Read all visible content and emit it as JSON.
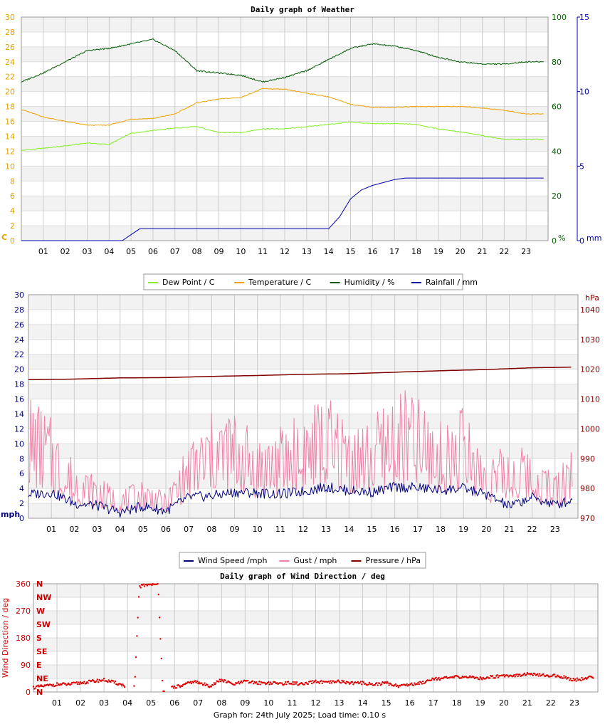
{
  "chart_data": [
    {
      "type": "line",
      "title": "Daily graph of Weather",
      "x": [
        "01",
        "02",
        "03",
        "04",
        "05",
        "06",
        "07",
        "08",
        "09",
        "10",
        "11",
        "12",
        "13",
        "14",
        "15",
        "16",
        "17",
        "18",
        "19",
        "20",
        "21",
        "22",
        "23"
      ],
      "axes": {
        "left": {
          "unit": "C",
          "ylim": [
            0,
            30
          ],
          "ticks": [
            0,
            2,
            4,
            6,
            8,
            10,
            12,
            14,
            16,
            18,
            20,
            22,
            24,
            26,
            28,
            30
          ],
          "color": "#e6a000"
        },
        "right1": {
          "unit": "%",
          "ylim": [
            0,
            100
          ],
          "ticks": [
            0,
            20,
            40,
            60,
            80,
            100
          ],
          "color": "#006400"
        },
        "right2": {
          "unit": "mm",
          "ylim": [
            0,
            15
          ],
          "ticks": [
            0,
            5,
            10,
            15
          ],
          "color": "#0000aa"
        }
      },
      "series": [
        {
          "name": "Dew Point / C",
          "color": "#80ee20",
          "axis": "left",
          "x": [
            0,
            1,
            2,
            3,
            4,
            5,
            6,
            7,
            8,
            9,
            10,
            11,
            12,
            13,
            14,
            15,
            16,
            17,
            18,
            19,
            20,
            21,
            22,
            23,
            23.8
          ],
          "values": [
            12.1,
            12.4,
            12.7,
            13.1,
            12.9,
            14.4,
            14.8,
            15.1,
            15.3,
            14.5,
            14.5,
            15.0,
            15.0,
            15.3,
            15.6,
            15.9,
            15.7,
            15.7,
            15.6,
            15.0,
            14.6,
            14.1,
            13.6,
            13.6,
            13.6
          ]
        },
        {
          "name": "Temperature / C",
          "color": "#f0a000",
          "axis": "left",
          "x": [
            0,
            1,
            2,
            3,
            4,
            5,
            6,
            7,
            8,
            9,
            10,
            11,
            12,
            13,
            14,
            15,
            16,
            17,
            18,
            19,
            20,
            21,
            22,
            23,
            23.8
          ],
          "values": [
            17.6,
            16.6,
            16.0,
            15.5,
            15.5,
            16.3,
            16.4,
            17.0,
            18.5,
            19.0,
            19.2,
            20.4,
            20.3,
            19.8,
            19.3,
            18.3,
            17.9,
            17.9,
            18.0,
            18.0,
            18.0,
            17.8,
            17.5,
            17.0,
            17.0
          ]
        },
        {
          "name": "Humidity / %",
          "color": "#005a00",
          "axis": "right1",
          "x": [
            0,
            1,
            2,
            3,
            4,
            5,
            6,
            7,
            8,
            9,
            10,
            11,
            12,
            13,
            14,
            15,
            16,
            17,
            18,
            19,
            20,
            21,
            22,
            23,
            23.8
          ],
          "values": [
            71,
            75,
            80,
            85,
            86,
            88,
            90,
            85,
            76,
            75,
            74,
            71,
            73,
            76,
            81,
            86,
            88,
            87,
            85,
            82,
            80,
            79,
            79,
            80,
            80
          ]
        },
        {
          "name": "Rainfall / mm",
          "color": "#0000aa",
          "axis": "right2",
          "x": [
            0,
            4,
            4.6,
            5,
            5.4,
            10,
            13,
            14,
            14.5,
            15,
            15.5,
            16,
            16.5,
            17,
            17.5,
            18,
            23.8
          ],
          "values": [
            0,
            0,
            0,
            0.4,
            0.8,
            0.8,
            0.8,
            0.8,
            1.6,
            2.8,
            3.4,
            3.7,
            3.9,
            4.1,
            4.2,
            4.2,
            4.2
          ]
        }
      ],
      "legend": "below"
    },
    {
      "type": "line",
      "title": "",
      "x": [
        "01",
        "02",
        "03",
        "04",
        "05",
        "06",
        "07",
        "08",
        "09",
        "10",
        "11",
        "12",
        "13",
        "14",
        "15",
        "16",
        "17",
        "18",
        "19",
        "20",
        "21",
        "22",
        "23"
      ],
      "axes": {
        "left": {
          "unit": "mph",
          "ylim": [
            0,
            30
          ],
          "ticks": [
            0,
            2,
            4,
            6,
            8,
            10,
            12,
            14,
            16,
            18,
            20,
            22,
            24,
            26,
            28,
            30
          ],
          "color": "#000080"
        },
        "right": {
          "unit": "hPa",
          "ylim": [
            970,
            1045
          ],
          "ticks": [
            970,
            980,
            990,
            1000,
            1010,
            1020,
            1030,
            1040
          ],
          "color": "#800000"
        }
      },
      "series": [
        {
          "name": "Wind Speed /mph",
          "color": "#000080",
          "axis": "left",
          "x": [
            0,
            1,
            2,
            3,
            4,
            5,
            6,
            7,
            8,
            9,
            10,
            11,
            12,
            13,
            14,
            15,
            16,
            17,
            18,
            19,
            20,
            21,
            22,
            23,
            23.8
          ],
          "values": [
            3.2,
            3.5,
            2.0,
            1.7,
            0.8,
            1.6,
            1.0,
            2.8,
            3.0,
            3.5,
            3.4,
            3.2,
            3.6,
            4.2,
            3.7,
            3.5,
            4.2,
            4.1,
            3.8,
            4.0,
            3.2,
            1.6,
            2.8,
            1.8,
            2.5
          ]
        },
        {
          "name": "Gust / mph",
          "color": "#f080a8",
          "axis": "left",
          "x": [
            0,
            1,
            2,
            3,
            4,
            5,
            6,
            7,
            8,
            9,
            10,
            11,
            12,
            13,
            14,
            15,
            16,
            17,
            18,
            19,
            20,
            21,
            22,
            23,
            23.8
          ],
          "values": [
            11.7,
            9.0,
            5.2,
            3.8,
            2.5,
            3.5,
            2.2,
            6.8,
            9.5,
            9.9,
            7.5,
            8.4,
            10.0,
            11.0,
            9.0,
            8.8,
            11.8,
            11.1,
            8.7,
            10.3,
            5.8,
            6.6,
            6.3,
            4.0,
            7.5
          ]
        },
        {
          "name": "Pressure / hPa",
          "color": "#800000",
          "axis": "right",
          "x": [
            0,
            2,
            4,
            6,
            8,
            10,
            12,
            14,
            16,
            18,
            20,
            22,
            23.8
          ],
          "values": [
            1016.5,
            1016.7,
            1017.1,
            1017.2,
            1017.6,
            1017.9,
            1018.3,
            1018.5,
            1019.0,
            1019.5,
            1019.9,
            1020.5,
            1020.7
          ]
        }
      ],
      "legend": "below"
    },
    {
      "type": "scatter",
      "title": "Daily graph of Wind Direction / deg",
      "ylabel": "Wind Direction / deg",
      "ylim": [
        0,
        360
      ],
      "y_ticks": [
        0,
        90,
        180,
        270,
        360
      ],
      "compass_labels": [
        "N",
        "NE",
        "E",
        "SE",
        "S",
        "SW",
        "W",
        "NW",
        "N"
      ],
      "x": [
        "01",
        "02",
        "03",
        "04",
        "05",
        "06",
        "07",
        "08",
        "09",
        "10",
        "11",
        "12",
        "13",
        "14",
        "15",
        "16",
        "17",
        "18",
        "19",
        "20",
        "21",
        "22",
        "23"
      ],
      "series": [
        {
          "name": "Wind Direction",
          "color": "#dd0000",
          "x": [
            0,
            0.5,
            1,
            1.5,
            2,
            2.5,
            3,
            3.5,
            3.9,
            4.3,
            4.5,
            4.7,
            5,
            5.3,
            5.5,
            5.8,
            6.3,
            6.8,
            7.5,
            8,
            8.5,
            9,
            9.5,
            10,
            10.5,
            11,
            11.5,
            12,
            12.5,
            13,
            13.5,
            14,
            14.5,
            15,
            15.5,
            16,
            16.5,
            17,
            17.5,
            18,
            18.5,
            19,
            19.5,
            20,
            20.5,
            21,
            21.5,
            22,
            22.5,
            23,
            23.5,
            23.8
          ],
          "values": [
            15,
            20,
            25,
            25,
            30,
            35,
            40,
            30,
            20,
            15,
            350,
            355,
            360,
            358,
            5,
            15,
            20,
            35,
            20,
            40,
            25,
            35,
            30,
            30,
            28,
            30,
            25,
            35,
            30,
            35,
            30,
            30,
            25,
            30,
            20,
            25,
            30,
            45,
            45,
            50,
            50,
            45,
            50,
            55,
            55,
            60,
            55,
            55,
            50,
            40,
            45,
            50
          ]
        }
      ]
    }
  ],
  "legends": {
    "weather": [
      {
        "label": "Dew Point / C",
        "color": "#80ee20"
      },
      {
        "label": "Temperature / C",
        "color": "#f0a000"
      },
      {
        "label": "Humidity / %",
        "color": "#005a00"
      },
      {
        "label": "Rainfall / mm",
        "color": "#0000aa"
      }
    ],
    "wind": [
      {
        "label": "Wind Speed /mph",
        "color": "#000080"
      },
      {
        "label": "Gust / mph",
        "color": "#f080a8"
      },
      {
        "label": "Pressure / hPa",
        "color": "#800000"
      }
    ]
  },
  "footer": "Graph for: 24th July 2025; Load time: 0.10 s"
}
